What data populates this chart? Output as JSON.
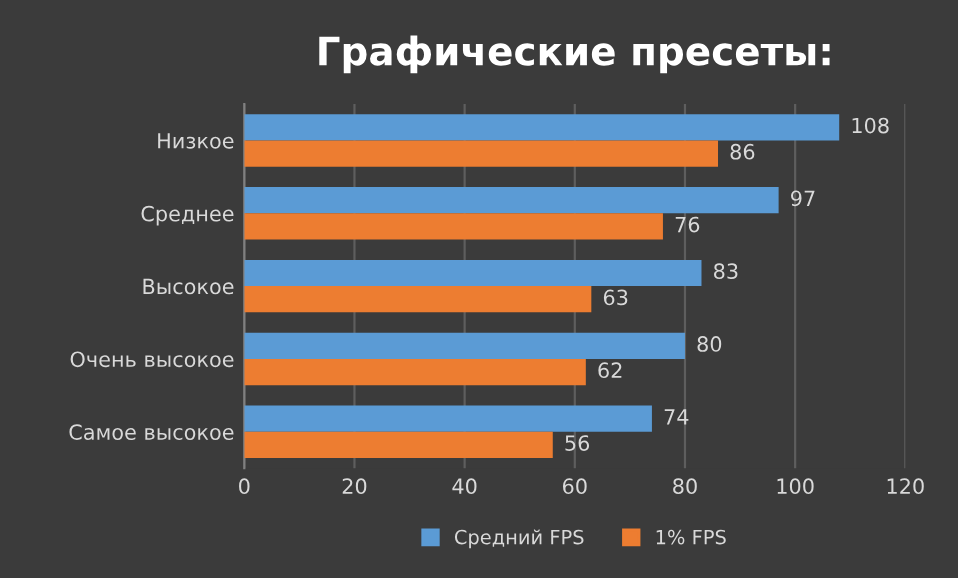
{
  "chart_data": {
    "type": "bar",
    "orientation": "horizontal",
    "title": "Графические пресеты:",
    "categories": [
      "Низкое",
      "Среднее",
      "Высокое",
      "Очень высокое",
      "Самое высокое"
    ],
    "series": [
      {
        "name": "Средний FPS",
        "color": "#5b9bd5",
        "values": [
          108,
          97,
          83,
          80,
          74
        ]
      },
      {
        "name": "1% FPS",
        "color": "#ed7d31",
        "values": [
          86,
          76,
          63,
          62,
          56
        ]
      }
    ],
    "xlim": [
      0,
      120
    ],
    "xticks": [
      0,
      20,
      40,
      60,
      80,
      100,
      120
    ],
    "grid": "x",
    "legend": "bottom",
    "data_labels": true
  }
}
